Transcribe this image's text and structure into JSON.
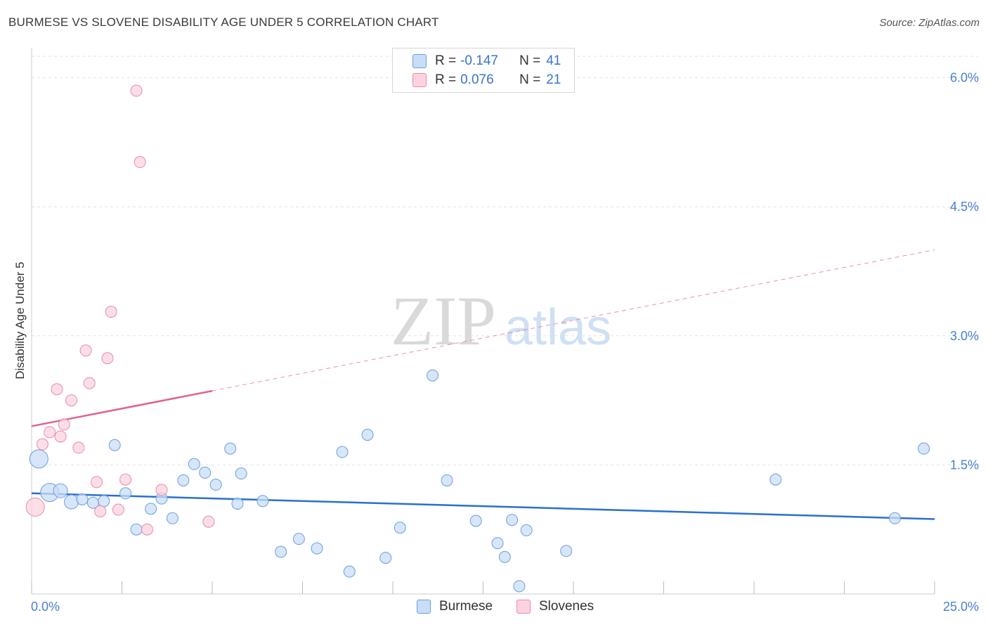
{
  "header": {
    "title": "BURMESE VS SLOVENE DISABILITY AGE UNDER 5 CORRELATION CHART",
    "source": "Source: ZipAtlas.com"
  },
  "watermark": {
    "zip": "ZIP",
    "atlas": "atlas"
  },
  "legend": {
    "rows": [
      {
        "r_label": "R =",
        "r_value": "-0.147",
        "n_label": "N =",
        "n_value": "41",
        "color": "#b8d4f5",
        "border": "#6a9fe0"
      },
      {
        "r_label": "R =",
        "r_value": "0.076",
        "n_label": "N =",
        "n_value": "21",
        "color": "#fbcad8",
        "border": "#ea8aa8"
      }
    ]
  },
  "bottom_legend": {
    "burmese": "Burmese",
    "slovenes": "Slovenes"
  },
  "chart_data": {
    "type": "scatter",
    "title": "BURMESE VS SLOVENE DISABILITY AGE UNDER 5 CORRELATION CHART",
    "xlabel": "",
    "ylabel": "Disability Age Under 5",
    "xlim": [
      0,
      25
    ],
    "ylim": [
      0,
      6.25
    ],
    "x_tick_labels": [
      "0.0%",
      "25.0%"
    ],
    "y_ticks": [
      1.5,
      3.0,
      4.5,
      6.0
    ],
    "y_tick_labels": [
      "1.5%",
      "3.0%",
      "4.5%",
      "6.0%"
    ],
    "grid": true,
    "series": [
      {
        "name": "Burmese",
        "color": "#6a9fe0",
        "fill": "#c9ddf6",
        "trend": {
          "x": [
            0,
            25
          ],
          "y": [
            1.17,
            0.87
          ],
          "color": "#2a6fcf"
        },
        "points": [
          {
            "x": 0.2,
            "y": 1.57,
            "size": "large"
          },
          {
            "x": 0.5,
            "y": 1.18,
            "size": "large"
          },
          {
            "x": 0.8,
            "y": 1.2,
            "size": "medium"
          },
          {
            "x": 1.1,
            "y": 1.07,
            "size": "medium"
          },
          {
            "x": 1.4,
            "y": 1.1,
            "size": "small"
          },
          {
            "x": 1.7,
            "y": 1.06,
            "size": "small"
          },
          {
            "x": 2.0,
            "y": 1.08,
            "size": "small"
          },
          {
            "x": 2.3,
            "y": 1.73,
            "size": "small"
          },
          {
            "x": 2.6,
            "y": 1.17,
            "size": "small"
          },
          {
            "x": 2.9,
            "y": 0.75,
            "size": "small"
          },
          {
            "x": 3.3,
            "y": 0.99,
            "size": "small"
          },
          {
            "x": 3.6,
            "y": 1.11,
            "size": "small"
          },
          {
            "x": 3.9,
            "y": 0.88,
            "size": "small"
          },
          {
            "x": 4.2,
            "y": 1.32,
            "size": "small"
          },
          {
            "x": 4.5,
            "y": 1.51,
            "size": "small"
          },
          {
            "x": 4.8,
            "y": 1.41,
            "size": "small"
          },
          {
            "x": 5.1,
            "y": 1.27,
            "size": "small"
          },
          {
            "x": 5.5,
            "y": 1.69,
            "size": "small"
          },
          {
            "x": 5.7,
            "y": 1.05,
            "size": "small"
          },
          {
            "x": 5.8,
            "y": 1.4,
            "size": "small"
          },
          {
            "x": 6.4,
            "y": 1.08,
            "size": "small"
          },
          {
            "x": 6.9,
            "y": 0.49,
            "size": "small"
          },
          {
            "x": 7.4,
            "y": 0.64,
            "size": "small"
          },
          {
            "x": 7.9,
            "y": 0.53,
            "size": "small"
          },
          {
            "x": 8.6,
            "y": 1.65,
            "size": "small"
          },
          {
            "x": 8.8,
            "y": 0.26,
            "size": "small"
          },
          {
            "x": 9.3,
            "y": 1.85,
            "size": "small"
          },
          {
            "x": 9.8,
            "y": 0.42,
            "size": "small"
          },
          {
            "x": 10.2,
            "y": 0.77,
            "size": "small"
          },
          {
            "x": 11.1,
            "y": 2.54,
            "size": "small"
          },
          {
            "x": 11.5,
            "y": 1.32,
            "size": "small"
          },
          {
            "x": 12.3,
            "y": 0.85,
            "size": "small"
          },
          {
            "x": 12.9,
            "y": 0.59,
            "size": "small"
          },
          {
            "x": 13.1,
            "y": 0.43,
            "size": "small"
          },
          {
            "x": 13.3,
            "y": 0.86,
            "size": "small"
          },
          {
            "x": 13.5,
            "y": 0.09,
            "size": "small"
          },
          {
            "x": 13.7,
            "y": 0.74,
            "size": "small"
          },
          {
            "x": 14.8,
            "y": 0.5,
            "size": "small"
          },
          {
            "x": 20.6,
            "y": 1.33,
            "size": "small"
          },
          {
            "x": 23.9,
            "y": 0.88,
            "size": "small"
          },
          {
            "x": 24.7,
            "y": 1.69,
            "size": "small"
          }
        ]
      },
      {
        "name": "Slovenes",
        "color": "#ea8aa8",
        "fill": "#fbd3df",
        "trend": {
          "x": [
            0,
            5.0
          ],
          "y": [
            1.95,
            2.36
          ],
          "dashed_x": [
            5.0,
            25
          ],
          "dashed_y": [
            2.36,
            4.0
          ],
          "color": "#e0638d"
        },
        "points": [
          {
            "x": 0.1,
            "y": 1.01,
            "size": "large"
          },
          {
            "x": 0.3,
            "y": 1.74,
            "size": "small"
          },
          {
            "x": 0.5,
            "y": 1.88,
            "size": "small"
          },
          {
            "x": 0.7,
            "y": 2.38,
            "size": "small"
          },
          {
            "x": 0.8,
            "y": 1.83,
            "size": "small"
          },
          {
            "x": 0.9,
            "y": 1.97,
            "size": "small"
          },
          {
            "x": 1.1,
            "y": 2.25,
            "size": "small"
          },
          {
            "x": 1.3,
            "y": 1.7,
            "size": "small"
          },
          {
            "x": 1.5,
            "y": 2.83,
            "size": "small"
          },
          {
            "x": 1.6,
            "y": 2.45,
            "size": "small"
          },
          {
            "x": 1.8,
            "y": 1.3,
            "size": "small"
          },
          {
            "x": 1.9,
            "y": 0.96,
            "size": "small"
          },
          {
            "x": 2.1,
            "y": 2.74,
            "size": "small"
          },
          {
            "x": 2.2,
            "y": 3.28,
            "size": "small"
          },
          {
            "x": 2.4,
            "y": 0.98,
            "size": "small"
          },
          {
            "x": 2.6,
            "y": 1.33,
            "size": "small"
          },
          {
            "x": 2.9,
            "y": 5.85,
            "size": "small"
          },
          {
            "x": 3.0,
            "y": 5.02,
            "size": "small"
          },
          {
            "x": 3.2,
            "y": 0.75,
            "size": "small"
          },
          {
            "x": 3.6,
            "y": 1.21,
            "size": "small"
          },
          {
            "x": 4.9,
            "y": 0.84,
            "size": "small"
          }
        ]
      }
    ]
  }
}
